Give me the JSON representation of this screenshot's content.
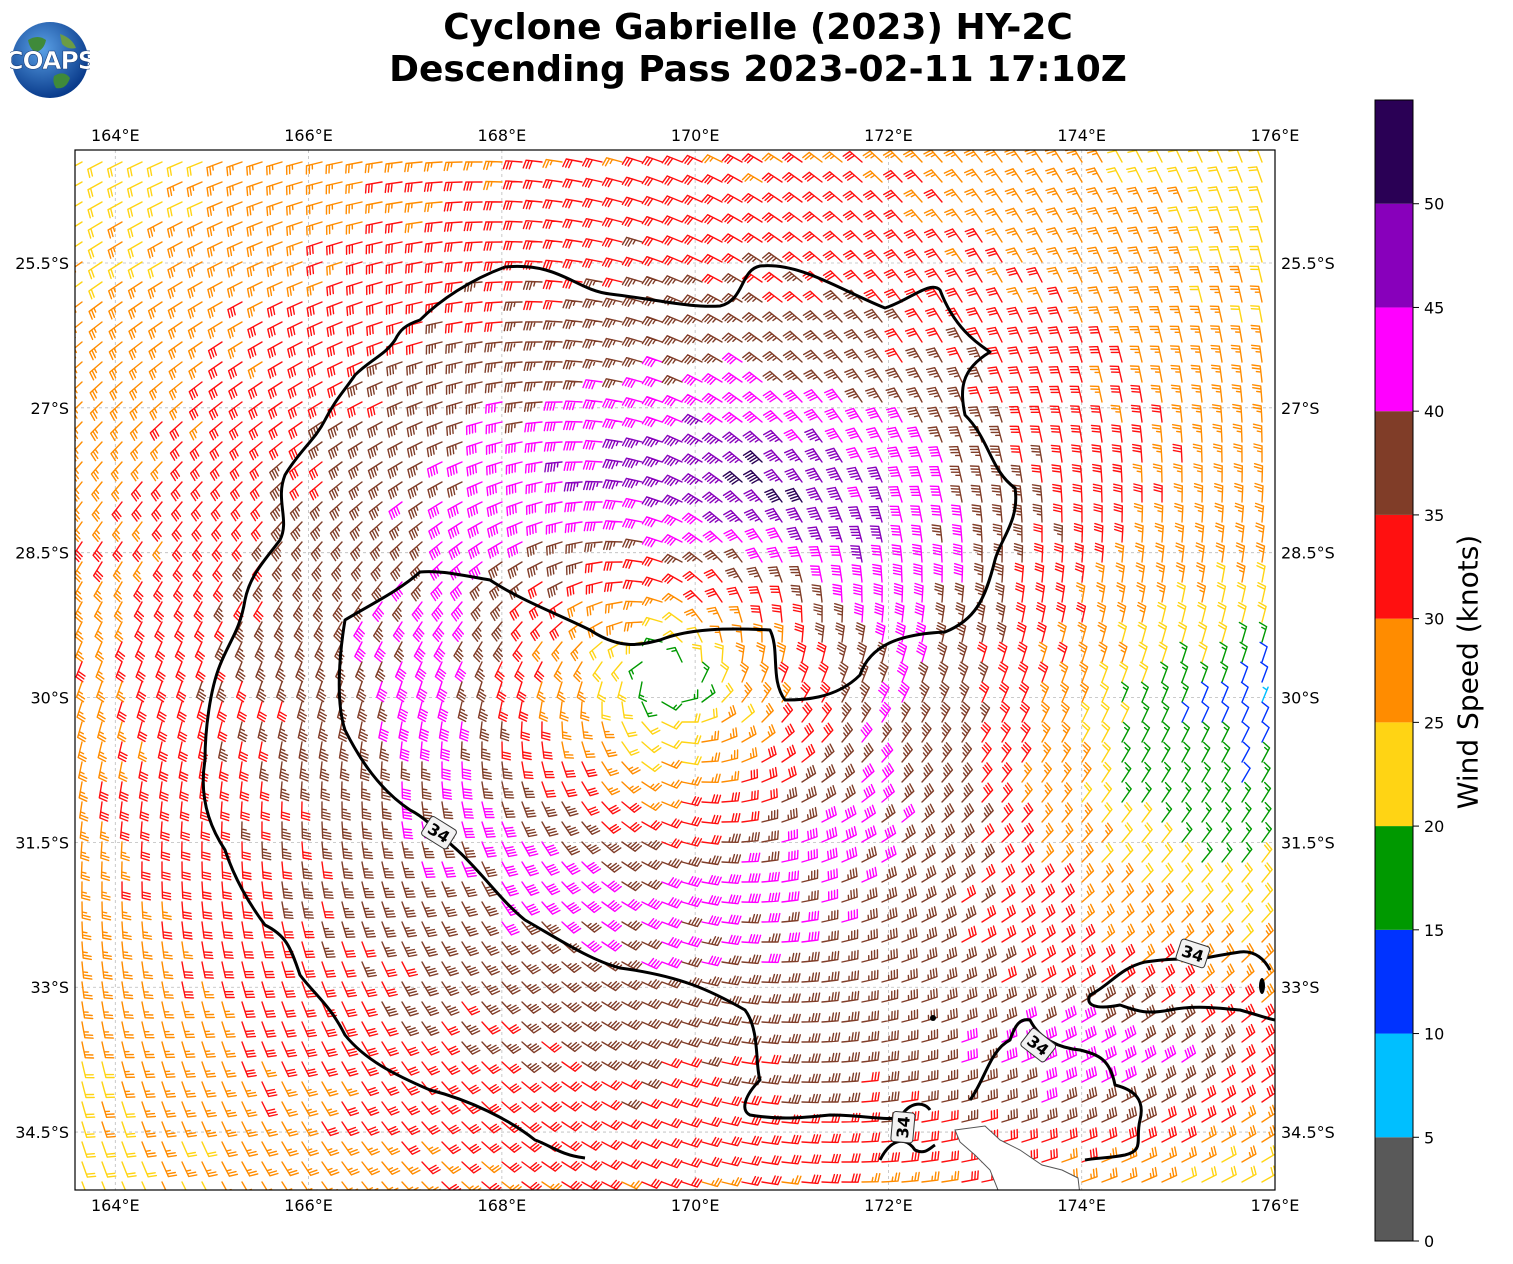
{
  "title": {
    "line1": "Cyclone Gabrielle (2023) HY-2C",
    "line2": "Descending Pass 2023-02-11 17:10Z"
  },
  "logo": {
    "text": "COAPS",
    "icon": "globe-logo"
  },
  "map": {
    "lon_range": [
      163.583,
      176.0
    ],
    "lat_range": [
      -35.1,
      -24.33
    ],
    "lon_ticks": [
      {
        "value": 164,
        "label": "164°E"
      },
      {
        "value": 166,
        "label": "166°E"
      },
      {
        "value": 168,
        "label": "168°E"
      },
      {
        "value": 170,
        "label": "170°E"
      },
      {
        "value": 172,
        "label": "172°E"
      },
      {
        "value": 174,
        "label": "174°E"
      },
      {
        "value": 176,
        "label": "176°E"
      }
    ],
    "lat_ticks": [
      {
        "value": -25.5,
        "label": "25.5°S"
      },
      {
        "value": -27,
        "label": "27°S"
      },
      {
        "value": -28.5,
        "label": "28.5°S"
      },
      {
        "value": -30,
        "label": "30°S"
      },
      {
        "value": -31.5,
        "label": "31.5°S"
      },
      {
        "value": -33,
        "label": "33°S"
      },
      {
        "value": -34.5,
        "label": "34.5°S"
      }
    ],
    "grid": "dashed",
    "storm_center": {
      "lon": 169.7,
      "lat": -29.8
    },
    "contour_label": "34",
    "contour_label_positions": [
      {
        "lon": 167.35,
        "lat": -31.4
      },
      {
        "lon": 175.15,
        "lat": -32.65
      },
      {
        "lon": 173.55,
        "lat": -33.6
      },
      {
        "lon": 172.15,
        "lat": -34.45
      }
    ]
  },
  "colorbar": {
    "label": "Wind Speed (knots)",
    "tick_labels": [
      "0",
      "5",
      "10",
      "15",
      "20",
      "25",
      "30",
      "35",
      "40",
      "45",
      "50"
    ],
    "bins": [
      {
        "min": 0,
        "max": 5,
        "color": "#595959"
      },
      {
        "min": 5,
        "max": 10,
        "color": "#00bfff"
      },
      {
        "min": 10,
        "max": 15,
        "color": "#0033ff"
      },
      {
        "min": 15,
        "max": 20,
        "color": "#009900"
      },
      {
        "min": 20,
        "max": 25,
        "color": "#ffd414"
      },
      {
        "min": 25,
        "max": 30,
        "color": "#ff8c00"
      },
      {
        "min": 30,
        "max": 35,
        "color": "#ff1010"
      },
      {
        "min": 35,
        "max": 40,
        "color": "#803d28"
      },
      {
        "min": 40,
        "max": 45,
        "color": "#ff00ff"
      },
      {
        "min": 45,
        "max": 50,
        "color": "#8800bb"
      },
      {
        "min": 50,
        "max": 55,
        "color": "#2a0055"
      }
    ]
  }
}
